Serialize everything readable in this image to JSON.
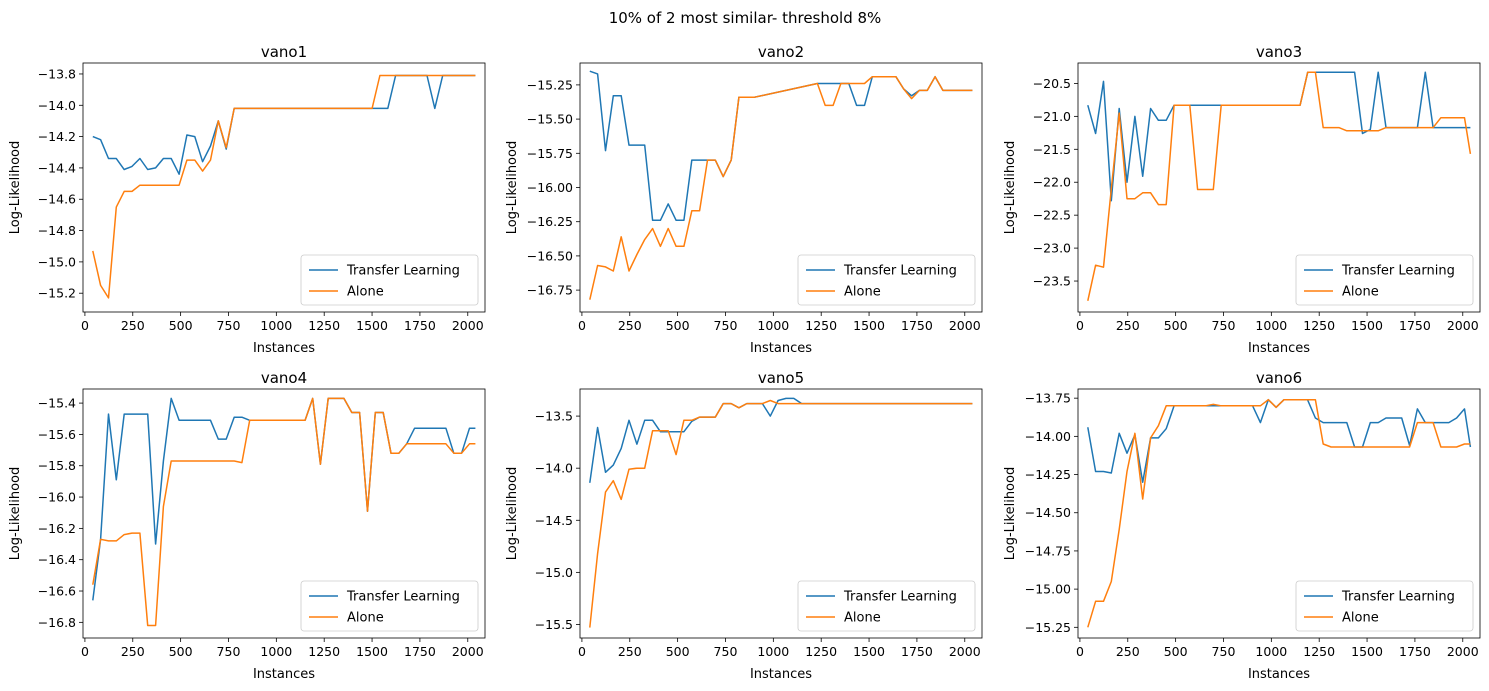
{
  "suptitle": "10% of 2 most similar- threshold 8%",
  "colors": {
    "transfer": "#1f77b4",
    "alone": "#ff7f0e"
  },
  "chart_data": [
    {
      "type": "line",
      "title": "vano1",
      "xlabel": "Instances",
      "ylabel": "Log-Likelihood",
      "xlim": [
        -10,
        2090
      ],
      "ylim": [
        -15.32,
        -13.73
      ],
      "xticks": [
        0,
        250,
        500,
        750,
        1000,
        1250,
        1500,
        1750,
        2000
      ],
      "yticks": [
        -15.2,
        -15.0,
        -14.8,
        -14.6,
        -14.4,
        -14.2,
        -14.0,
        -13.8
      ],
      "legend": {
        "position": "lower-right",
        "entries": [
          "Transfer Learning",
          "Alone"
        ]
      },
      "x": [
        41,
        82,
        123,
        164,
        205,
        246,
        287,
        328,
        369,
        410,
        451,
        492,
        533,
        574,
        615,
        656,
        697,
        738,
        780,
        1500,
        1541,
        1582,
        1623,
        1664,
        1705,
        1746,
        1787,
        1828,
        1869,
        2040
      ],
      "series": [
        {
          "name": "Transfer Learning",
          "values": [
            -14.2,
            -14.22,
            -14.34,
            -14.34,
            -14.41,
            -14.39,
            -14.34,
            -14.41,
            -14.4,
            -14.34,
            -14.34,
            -14.44,
            -14.19,
            -14.2,
            -14.36,
            -14.26,
            -14.1,
            -14.28,
            -14.02,
            -14.02,
            -14.02,
            -14.02,
            -13.81,
            -13.81,
            -13.81,
            -13.81,
            -13.81,
            -14.02,
            -13.81,
            -13.81
          ]
        },
        {
          "name": "Alone",
          "values": [
            -14.93,
            -15.15,
            -15.23,
            -14.65,
            -14.55,
            -14.55,
            -14.51,
            -14.51,
            -14.51,
            -14.51,
            -14.51,
            -14.51,
            -14.35,
            -14.35,
            -14.42,
            -14.35,
            -14.1,
            -14.27,
            -14.02,
            -14.02,
            -13.81,
            -13.81,
            -13.81,
            -13.81,
            -13.81,
            -13.81,
            -13.81,
            -13.81,
            -13.81,
            -13.81
          ]
        }
      ]
    },
    {
      "type": "line",
      "title": "vano2",
      "xlabel": "Instances",
      "ylabel": "Log-Likelihood",
      "xlim": [
        -10,
        2090
      ],
      "ylim": [
        -16.91,
        -15.09
      ],
      "xticks": [
        0,
        250,
        500,
        750,
        1000,
        1250,
        1500,
        1750,
        2000
      ],
      "yticks": [
        -16.75,
        -16.5,
        -16.25,
        -16.0,
        -15.75,
        -15.5,
        -15.25
      ],
      "legend": {
        "position": "lower-right",
        "entries": [
          "Transfer Learning",
          "Alone"
        ]
      },
      "x": [
        41,
        82,
        123,
        164,
        205,
        246,
        287,
        328,
        369,
        410,
        451,
        492,
        533,
        574,
        615,
        656,
        697,
        738,
        780,
        820,
        861,
        902,
        1230,
        1271,
        1312,
        1353,
        1394,
        1435,
        1476,
        1517,
        1558,
        1599,
        1640,
        1681,
        1722,
        1763,
        1804,
        1845,
        1886,
        2040
      ],
      "series": [
        {
          "name": "Transfer Learning",
          "values": [
            -15.15,
            -15.17,
            -15.73,
            -15.33,
            -15.33,
            -15.69,
            -15.69,
            -15.69,
            -16.24,
            -16.24,
            -16.12,
            -16.24,
            -16.24,
            -15.8,
            -15.8,
            -15.8,
            -15.8,
            -15.92,
            -15.8,
            -15.34,
            -15.34,
            -15.34,
            -15.24,
            -15.24,
            -15.24,
            -15.24,
            -15.24,
            -15.4,
            -15.4,
            -15.19,
            -15.19,
            -15.19,
            -15.19,
            -15.28,
            -15.33,
            -15.29,
            -15.29,
            -15.19,
            -15.29,
            -15.29
          ]
        },
        {
          "name": "Alone",
          "values": [
            -16.82,
            -16.57,
            -16.58,
            -16.61,
            -16.36,
            -16.61,
            -16.49,
            -16.38,
            -16.3,
            -16.43,
            -16.3,
            -16.43,
            -16.43,
            -16.17,
            -16.17,
            -15.8,
            -15.8,
            -15.92,
            -15.8,
            -15.34,
            -15.34,
            -15.34,
            -15.24,
            -15.4,
            -15.4,
            -15.24,
            -15.24,
            -15.24,
            -15.24,
            -15.19,
            -15.19,
            -15.19,
            -15.19,
            -15.28,
            -15.35,
            -15.29,
            -15.29,
            -15.19,
            -15.29,
            -15.29
          ]
        }
      ]
    },
    {
      "type": "line",
      "title": "vano3",
      "xlabel": "Instances",
      "ylabel": "Log-Likelihood",
      "xlim": [
        -10,
        2090
      ],
      "ylim": [
        -23.97,
        -20.19
      ],
      "xticks": [
        0,
        250,
        500,
        750,
        1000,
        1250,
        1500,
        1750,
        2000
      ],
      "yticks": [
        -23.5,
        -23.0,
        -22.5,
        -22.0,
        -21.5,
        -21.0,
        -20.5
      ],
      "legend": {
        "position": "lower-right",
        "entries": [
          "Transfer Learning",
          "Alone"
        ]
      },
      "x": [
        41,
        82,
        123,
        164,
        205,
        246,
        287,
        328,
        369,
        410,
        451,
        492,
        533,
        574,
        615,
        656,
        697,
        738,
        780,
        1150,
        1190,
        1230,
        1271,
        1312,
        1353,
        1394,
        1435,
        1476,
        1517,
        1558,
        1599,
        1640,
        1681,
        1722,
        1763,
        1804,
        1845,
        1886,
        1927,
        1968,
        2009,
        2040
      ],
      "series": [
        {
          "name": "Transfer Learning",
          "values": [
            -20.83,
            -21.26,
            -20.47,
            -22.28,
            -20.88,
            -22.0,
            -21.0,
            -21.91,
            -20.88,
            -21.06,
            -21.06,
            -20.83,
            -20.83,
            -20.83,
            -20.83,
            -20.83,
            -20.83,
            -20.83,
            -20.83,
            -20.83,
            -20.33,
            -20.33,
            -20.33,
            -20.33,
            -20.33,
            -20.33,
            -20.33,
            -21.26,
            -21.2,
            -20.33,
            -21.17,
            -21.17,
            -21.17,
            -21.17,
            -21.17,
            -20.33,
            -21.17,
            -21.17,
            -21.17,
            -21.17,
            -21.17,
            -21.17
          ]
        },
        {
          "name": "Alone",
          "values": [
            -23.8,
            -23.26,
            -23.29,
            -22.1,
            -20.95,
            -22.25,
            -22.25,
            -22.16,
            -22.16,
            -22.34,
            -22.34,
            -20.83,
            -20.83,
            -20.83,
            -22.11,
            -22.11,
            -22.11,
            -20.83,
            -20.83,
            -20.83,
            -20.33,
            -20.33,
            -21.17,
            -21.17,
            -21.17,
            -21.22,
            -21.22,
            -21.22,
            -21.22,
            -21.22,
            -21.17,
            -21.17,
            -21.17,
            -21.17,
            -21.17,
            -21.17,
            -21.17,
            -21.02,
            -21.02,
            -21.02,
            -21.02,
            -21.57
          ]
        }
      ]
    },
    {
      "type": "line",
      "title": "vano4",
      "xlabel": "Instances",
      "ylabel": "Log-Likelihood",
      "xlim": [
        -10,
        2090
      ],
      "ylim": [
        -16.9,
        -15.31
      ],
      "xticks": [
        0,
        250,
        500,
        750,
        1000,
        1250,
        1500,
        1750,
        2000
      ],
      "yticks": [
        -16.8,
        -16.6,
        -16.4,
        -16.2,
        -16.0,
        -15.8,
        -15.6,
        -15.4
      ],
      "legend": {
        "position": "lower-right",
        "entries": [
          "Transfer Learning",
          "Alone"
        ]
      },
      "x": [
        41,
        82,
        123,
        164,
        205,
        246,
        287,
        328,
        369,
        410,
        451,
        492,
        533,
        574,
        615,
        656,
        697,
        738,
        780,
        820,
        861,
        1150,
        1190,
        1230,
        1271,
        1312,
        1353,
        1394,
        1435,
        1476,
        1517,
        1558,
        1599,
        1640,
        1681,
        1722,
        1763,
        1804,
        1845,
        1886,
        1927,
        1968,
        2009,
        2040
      ],
      "series": [
        {
          "name": "Transfer Learning",
          "values": [
            -16.66,
            -16.27,
            -15.47,
            -15.89,
            -15.47,
            -15.47,
            -15.47,
            -15.47,
            -16.3,
            -15.77,
            -15.37,
            -15.51,
            -15.51,
            -15.51,
            -15.51,
            -15.51,
            -15.63,
            -15.63,
            -15.49,
            -15.49,
            -15.51,
            -15.51,
            -15.37,
            -15.79,
            -15.37,
            -15.37,
            -15.37,
            -15.46,
            -15.46,
            -16.09,
            -15.46,
            -15.46,
            -15.72,
            -15.72,
            -15.66,
            -15.56,
            -15.56,
            -15.56,
            -15.56,
            -15.56,
            -15.72,
            -15.72,
            -15.56,
            -15.56
          ]
        },
        {
          "name": "Alone",
          "values": [
            -16.56,
            -16.27,
            -16.28,
            -16.28,
            -16.24,
            -16.23,
            -16.23,
            -16.82,
            -16.82,
            -16.06,
            -15.77,
            -15.77,
            -15.77,
            -15.77,
            -15.77,
            -15.77,
            -15.77,
            -15.77,
            -15.77,
            -15.78,
            -15.51,
            -15.51,
            -15.37,
            -15.79,
            -15.37,
            -15.37,
            -15.37,
            -15.46,
            -15.46,
            -16.09,
            -15.46,
            -15.46,
            -15.72,
            -15.72,
            -15.66,
            -15.66,
            -15.66,
            -15.66,
            -15.66,
            -15.66,
            -15.72,
            -15.72,
            -15.66,
            -15.66
          ]
        }
      ]
    },
    {
      "type": "line",
      "title": "vano5",
      "xlabel": "Instances",
      "ylabel": "Log-Likelihood",
      "xlim": [
        -10,
        2090
      ],
      "ylim": [
        -15.63,
        -13.24
      ],
      "xticks": [
        0,
        250,
        500,
        750,
        1000,
        1250,
        1500,
        1750,
        2000
      ],
      "yticks": [
        -15.5,
        -15.0,
        -14.5,
        -14.0,
        -13.5
      ],
      "legend": {
        "position": "lower-right",
        "entries": [
          "Transfer Learning",
          "Alone"
        ]
      },
      "x": [
        41,
        82,
        123,
        164,
        205,
        246,
        287,
        328,
        369,
        410,
        451,
        492,
        533,
        574,
        615,
        656,
        697,
        738,
        780,
        820,
        861,
        902,
        943,
        984,
        1025,
        1066,
        1107,
        1148,
        1189,
        1230,
        2040
      ],
      "series": [
        {
          "name": "Transfer Learning",
          "values": [
            -14.14,
            -13.61,
            -14.04,
            -13.97,
            -13.81,
            -13.54,
            -13.77,
            -13.54,
            -13.54,
            -13.65,
            -13.65,
            -13.65,
            -13.65,
            -13.55,
            -13.51,
            -13.51,
            -13.51,
            -13.38,
            -13.38,
            -13.42,
            -13.38,
            -13.38,
            -13.38,
            -13.5,
            -13.35,
            -13.33,
            -13.33,
            -13.38,
            -13.38,
            -13.38,
            -13.38
          ]
        },
        {
          "name": "Alone",
          "values": [
            -15.53,
            -14.82,
            -14.23,
            -14.12,
            -14.3,
            -14.01,
            -14.0,
            -14.0,
            -13.64,
            -13.64,
            -13.64,
            -13.87,
            -13.54,
            -13.54,
            -13.51,
            -13.51,
            -13.51,
            -13.38,
            -13.38,
            -13.42,
            -13.38,
            -13.38,
            -13.38,
            -13.35,
            -13.38,
            -13.38,
            -13.38,
            -13.38,
            -13.38,
            -13.38,
            -13.38
          ]
        }
      ]
    },
    {
      "type": "line",
      "title": "vano6",
      "xlabel": "Instances",
      "ylabel": "Log-Likelihood",
      "xlim": [
        -10,
        2090
      ],
      "ylim": [
        -15.32,
        -13.69
      ],
      "xticks": [
        0,
        250,
        500,
        750,
        1000,
        1250,
        1500,
        1750,
        2000
      ],
      "yticks": [
        -15.25,
        -15.0,
        -14.75,
        -14.5,
        -14.25,
        -14.0,
        -13.75
      ],
      "legend": {
        "position": "lower-right",
        "entries": [
          "Transfer Learning",
          "Alone"
        ]
      },
      "x": [
        41,
        82,
        123,
        164,
        205,
        246,
        287,
        328,
        369,
        410,
        451,
        492,
        533,
        574,
        615,
        656,
        697,
        738,
        780,
        820,
        861,
        902,
        943,
        984,
        1025,
        1066,
        1107,
        1148,
        1189,
        1230,
        1271,
        1312,
        1353,
        1394,
        1435,
        1476,
        1517,
        1558,
        1599,
        1640,
        1681,
        1722,
        1763,
        1804,
        1845,
        1886,
        1927,
        1968,
        2009,
        2040
      ],
      "series": [
        {
          "name": "Transfer Learning",
          "values": [
            -13.94,
            -14.23,
            -14.23,
            -14.24,
            -13.98,
            -14.11,
            -13.99,
            -14.3,
            -14.01,
            -14.01,
            -13.95,
            -13.8,
            -13.8,
            -13.8,
            -13.8,
            -13.8,
            -13.8,
            -13.8,
            -13.8,
            -13.8,
            -13.8,
            -13.8,
            -13.91,
            -13.76,
            -13.81,
            -13.76,
            -13.76,
            -13.76,
            -13.76,
            -13.88,
            -13.91,
            -13.91,
            -13.91,
            -13.91,
            -14.07,
            -14.07,
            -13.91,
            -13.91,
            -13.88,
            -13.88,
            -13.88,
            -14.06,
            -13.82,
            -13.91,
            -13.91,
            -13.91,
            -13.91,
            -13.88,
            -13.82,
            -14.07
          ]
        },
        {
          "name": "Alone",
          "values": [
            -15.25,
            -15.08,
            -15.08,
            -14.95,
            -14.61,
            -14.23,
            -13.98,
            -14.41,
            -14.01,
            -13.93,
            -13.8,
            -13.8,
            -13.8,
            -13.8,
            -13.8,
            -13.8,
            -13.79,
            -13.8,
            -13.8,
            -13.8,
            -13.8,
            -13.8,
            -13.8,
            -13.76,
            -13.81,
            -13.76,
            -13.76,
            -13.76,
            -13.76,
            -13.76,
            -14.05,
            -14.07,
            -14.07,
            -14.07,
            -14.07,
            -14.07,
            -14.07,
            -14.07,
            -14.07,
            -14.07,
            -14.07,
            -14.07,
            -13.91,
            -13.91,
            -13.91,
            -14.07,
            -14.07,
            -14.07,
            -14.05,
            -14.05
          ]
        }
      ]
    }
  ]
}
